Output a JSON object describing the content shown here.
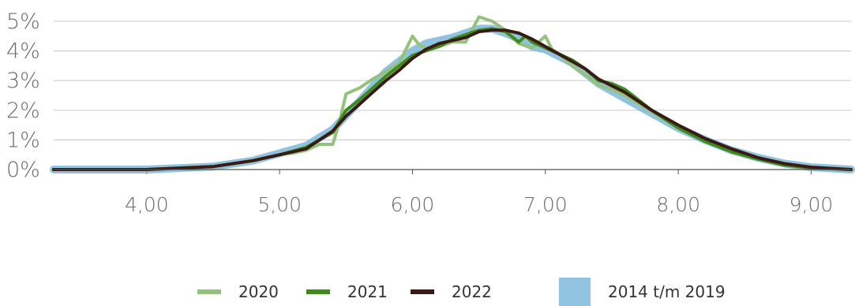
{
  "chart_data": {
    "type": "line",
    "xlim": [
      3.3,
      9.3
    ],
    "ylim": [
      0,
      5
    ],
    "x_ticks": [
      "4,00",
      "5,00",
      "6,00",
      "7,00",
      "8,00",
      "9,00"
    ],
    "x_tick_values": [
      4,
      5,
      6,
      7,
      8,
      9
    ],
    "y_ticks": [
      "0%",
      "1%",
      "2%",
      "3%",
      "4%",
      "5%"
    ],
    "y_tick_values": [
      0,
      1,
      2,
      3,
      4,
      5
    ],
    "grid": "horizontal",
    "legend_position": "bottom",
    "series": [
      {
        "name": "2014 t/m 2019",
        "style": "band",
        "color": "#7eb8dc",
        "x": [
          3.3,
          4.0,
          4.5,
          4.8,
          5.0,
          5.2,
          5.4,
          5.6,
          5.8,
          6.0,
          6.1,
          6.2,
          6.3,
          6.4,
          6.5,
          6.6,
          6.7,
          6.8,
          6.9,
          7.0,
          7.2,
          7.4,
          7.6,
          7.8,
          8.0,
          8.2,
          8.4,
          8.6,
          8.8,
          9.0,
          9.3
        ],
        "values": [
          0,
          0,
          0.1,
          0.3,
          0.55,
          0.8,
          1.35,
          2.3,
          3.3,
          4.0,
          4.25,
          4.35,
          4.45,
          4.6,
          4.75,
          4.75,
          4.6,
          4.4,
          4.15,
          4.05,
          3.6,
          2.9,
          2.4,
          1.9,
          1.4,
          1.0,
          0.65,
          0.4,
          0.2,
          0.08,
          0
        ]
      },
      {
        "name": "2020",
        "style": "line",
        "color": "#94c27c",
        "x": [
          3.3,
          4.0,
          4.5,
          4.8,
          5.0,
          5.1,
          5.2,
          5.3,
          5.4,
          5.45,
          5.5,
          5.6,
          5.7,
          5.8,
          5.9,
          6.0,
          6.05,
          6.1,
          6.2,
          6.3,
          6.4,
          6.5,
          6.6,
          6.7,
          6.8,
          6.9,
          7.0,
          7.05,
          7.1,
          7.2,
          7.3,
          7.4,
          7.5,
          7.6,
          7.8,
          8.0,
          8.2,
          8.4,
          8.6,
          8.8,
          9.0,
          9.3
        ],
        "values": [
          0,
          0,
          0.1,
          0.3,
          0.5,
          0.55,
          0.65,
          0.85,
          0.85,
          1.6,
          2.55,
          2.75,
          3.05,
          3.3,
          3.6,
          4.5,
          4.2,
          4.1,
          4.15,
          4.3,
          4.3,
          5.15,
          5.0,
          4.7,
          4.25,
          4.1,
          4.5,
          4.05,
          3.9,
          3.5,
          3.2,
          2.85,
          2.7,
          2.5,
          1.95,
          1.4,
          1.0,
          0.6,
          0.35,
          0.15,
          0.05,
          0
        ]
      },
      {
        "name": "2021",
        "style": "line",
        "color": "#3f8a1c",
        "x": [
          3.3,
          4.0,
          4.5,
          4.8,
          5.0,
          5.2,
          5.4,
          5.5,
          5.6,
          5.7,
          5.8,
          5.9,
          6.0,
          6.1,
          6.2,
          6.3,
          6.4,
          6.5,
          6.6,
          6.7,
          6.8,
          6.85,
          6.9,
          7.0,
          7.1,
          7.2,
          7.3,
          7.4,
          7.5,
          7.6,
          7.8,
          8.0,
          8.2,
          8.4,
          8.6,
          8.8,
          9.0,
          9.3
        ],
        "values": [
          0,
          0,
          0.1,
          0.3,
          0.5,
          0.75,
          1.25,
          2.0,
          2.35,
          2.75,
          3.15,
          3.5,
          3.85,
          4.0,
          4.15,
          4.4,
          4.55,
          4.7,
          4.75,
          4.65,
          4.3,
          4.5,
          4.3,
          4.1,
          3.9,
          3.7,
          3.4,
          3.0,
          2.9,
          2.7,
          2.0,
          1.4,
          0.95,
          0.6,
          0.35,
          0.15,
          0.05,
          0
        ]
      },
      {
        "name": "2022",
        "style": "line",
        "color": "#3a1a14",
        "x": [
          3.3,
          4.0,
          4.5,
          4.8,
          5.0,
          5.2,
          5.4,
          5.5,
          5.6,
          5.7,
          5.8,
          5.9,
          6.0,
          6.1,
          6.2,
          6.3,
          6.4,
          6.5,
          6.6,
          6.7,
          6.8,
          6.9,
          7.0,
          7.1,
          7.2,
          7.3,
          7.4,
          7.6,
          7.8,
          8.0,
          8.2,
          8.4,
          8.6,
          8.8,
          9.0,
          9.3
        ],
        "values": [
          0,
          0,
          0.1,
          0.3,
          0.5,
          0.7,
          1.3,
          1.8,
          2.2,
          2.6,
          3.0,
          3.35,
          3.75,
          4.05,
          4.25,
          4.35,
          4.45,
          4.65,
          4.7,
          4.7,
          4.6,
          4.4,
          4.15,
          3.9,
          3.65,
          3.4,
          3.05,
          2.6,
          2.0,
          1.5,
          1.05,
          0.7,
          0.4,
          0.2,
          0.08,
          0
        ]
      }
    ]
  },
  "legend": {
    "items": [
      {
        "label": "2020",
        "color": "#94c27c",
        "kind": "line"
      },
      {
        "label": "2021",
        "color": "#3f8a1c",
        "kind": "line"
      },
      {
        "label": "2022",
        "color": "#3a1a14",
        "kind": "line"
      },
      {
        "label": "2014 t/m 2019",
        "color": "#7eb8dc",
        "kind": "band"
      }
    ]
  }
}
